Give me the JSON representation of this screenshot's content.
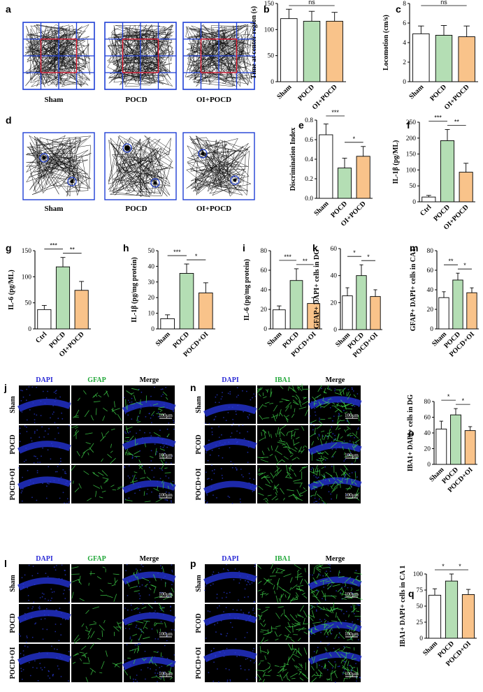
{
  "panels": {
    "a": {
      "letter": "a",
      "labels": [
        "Sham",
        "POCD",
        "OI+POCD"
      ]
    },
    "d": {
      "letter": "d",
      "labels": [
        "Sham",
        "POCD",
        "OI+POCD"
      ]
    },
    "j": {
      "letter": "j",
      "cols": [
        "DAPI",
        "GFAP",
        "Merge"
      ],
      "rows": [
        "Sham",
        "POCD",
        "POCD+OI"
      ],
      "scale": "100μm"
    },
    "n": {
      "letter": "n",
      "cols": [
        "DAPI",
        "IBA1",
        "Merge"
      ],
      "rows": [
        "Sham",
        "PCOD",
        "POCD+OI"
      ],
      "scale": "100μm"
    },
    "l": {
      "letter": "l",
      "cols": [
        "DAPI",
        "GFAP",
        "Merge"
      ],
      "rows": [
        "Sham",
        "POCD",
        "POCD+OI"
      ],
      "scale": "100μm"
    },
    "p": {
      "letter": "p",
      "cols": [
        "DAPI",
        "IBA1",
        "Merge"
      ],
      "rows": [
        "Sham",
        "PCOD",
        "POCD+OI"
      ],
      "scale": "100μm"
    }
  },
  "colors": {
    "white_bar": "#ffffff",
    "green_bar": "#b4deb4",
    "orange_bar": "#f9c38a",
    "dapi_title": "#2b2bd6",
    "marker_title": "#22a83a"
  },
  "chart_data": [
    {
      "id": "b",
      "letter": "b",
      "type": "bar",
      "categories": [
        "Sham",
        "POCD",
        "OI+POCD"
      ],
      "values": [
        121,
        116,
        116
      ],
      "errors": [
        18,
        19,
        17
      ],
      "ylabel": "Time at center region (s)",
      "ylim": [
        0,
        150
      ],
      "yticks": [
        0,
        50,
        100,
        150
      ],
      "sig": [
        {
          "from": 0,
          "to": 2,
          "text": "ns"
        }
      ]
    },
    {
      "id": "c",
      "letter": "c",
      "type": "bar",
      "categories": [
        "Sham",
        "POCD",
        "OI+POCD"
      ],
      "values": [
        4.9,
        4.75,
        4.6
      ],
      "errors": [
        0.8,
        1.0,
        1.1
      ],
      "ylabel": "Locomotion (cm/s)",
      "ylim": [
        0,
        8
      ],
      "yticks": [
        0,
        2,
        4,
        6,
        8
      ],
      "sig": [
        {
          "from": 0,
          "to": 2,
          "text": "ns"
        }
      ]
    },
    {
      "id": "e",
      "letter": "e",
      "type": "bar",
      "categories": [
        "Sham",
        "POCD",
        "OI+POCD"
      ],
      "values": [
        0.65,
        0.31,
        0.43
      ],
      "errors": [
        0.11,
        0.1,
        0.1
      ],
      "ylabel": "Discrimination Index",
      "ylim": [
        0,
        0.8
      ],
      "yticks": [
        0.0,
        0.2,
        0.4,
        0.6,
        0.8
      ],
      "sig": [
        {
          "from": 0,
          "to": 1,
          "text": "***"
        },
        {
          "from": 1,
          "to": 2,
          "text": "*"
        }
      ]
    },
    {
      "id": "f",
      "letter": "f",
      "type": "bar",
      "categories": [
        "Ctrl",
        "POCD",
        "OI+POCD"
      ],
      "values": [
        15,
        192,
        93
      ],
      "errors": [
        5,
        35,
        28
      ],
      "ylabel": "IL-1β (pg/ML)",
      "ylim": [
        0,
        250
      ],
      "yticks": [
        0,
        50,
        100,
        150,
        200,
        250
      ],
      "sig": [
        {
          "from": 0,
          "to": 1,
          "text": "***"
        },
        {
          "from": 1,
          "to": 2,
          "text": "**"
        }
      ]
    },
    {
      "id": "g",
      "letter": "g",
      "type": "bar",
      "categories": [
        "Ctrl",
        "POCD",
        "OI+POCD"
      ],
      "values": [
        37,
        119,
        74
      ],
      "errors": [
        8,
        18,
        17
      ],
      "ylabel": "IL-6 (pg/ML)",
      "ylim": [
        0,
        150
      ],
      "yticks": [
        0,
        50,
        100,
        150
      ],
      "sig": [
        {
          "from": 0,
          "to": 1,
          "text": "***"
        },
        {
          "from": 1,
          "to": 2,
          "text": "**"
        }
      ]
    },
    {
      "id": "h",
      "letter": "h",
      "type": "bar",
      "categories": [
        "Sham",
        "POCD",
        "POCD+OI"
      ],
      "values": [
        6.5,
        35.5,
        23
      ],
      "errors": [
        2.5,
        6,
        6.5
      ],
      "ylabel": "IL-1β (pg/mg protein)",
      "ylim": [
        0,
        50
      ],
      "yticks": [
        0,
        10,
        20,
        30,
        40,
        50
      ],
      "sig": [
        {
          "from": 0,
          "to": 1,
          "text": "***"
        },
        {
          "from": 1,
          "to": 2,
          "text": "*"
        }
      ]
    },
    {
      "id": "i",
      "letter": "i",
      "type": "bar",
      "categories": [
        "Sham",
        "POCD",
        "POCD+OI"
      ],
      "values": [
        19.5,
        49.5,
        26
      ],
      "errors": [
        4,
        12,
        6
      ],
      "ylabel": "IL-6 (pg/mg protein)",
      "ylim": [
        0,
        80
      ],
      "yticks": [
        0,
        20,
        40,
        60,
        80
      ],
      "sig": [
        {
          "from": 0,
          "to": 1,
          "text": "***"
        },
        {
          "from": 1,
          "to": 2,
          "text": "**"
        }
      ]
    },
    {
      "id": "k",
      "letter": "k",
      "type": "bar",
      "categories": [
        "Sham",
        "POCD",
        "POCD+OI"
      ],
      "values": [
        25,
        40,
        24.5
      ],
      "errors": [
        6,
        8,
        5
      ],
      "ylabel": "GFAP+ DAPI+ cells in DG",
      "ylim": [
        0,
        60
      ],
      "yticks": [
        0,
        20,
        40,
        60
      ],
      "sig": [
        {
          "from": 0,
          "to": 1,
          "text": "*"
        },
        {
          "from": 1,
          "to": 2,
          "text": "*"
        }
      ]
    },
    {
      "id": "m",
      "letter": "m",
      "type": "bar",
      "categories": [
        "Sham",
        "POCD",
        "POCD+OI"
      ],
      "values": [
        32,
        50,
        37
      ],
      "errors": [
        6,
        7,
        5
      ],
      "ylabel": "GFAP+ DAPI+ cells in CA1",
      "ylim": [
        0,
        80
      ],
      "yticks": [
        0,
        20,
        40,
        60,
        80
      ],
      "sig": [
        {
          "from": 0,
          "to": 1,
          "text": "**"
        },
        {
          "from": 1,
          "to": 2,
          "text": "*"
        }
      ]
    },
    {
      "id": "o",
      "letter": "o",
      "type": "bar",
      "categories": [
        "Sham",
        "POCD",
        "POCD+OI"
      ],
      "values": [
        45,
        63,
        43
      ],
      "errors": [
        10,
        8,
        5
      ],
      "ylabel": "IBA1+ DAPI+ cells in DG",
      "ylim": [
        0,
        80
      ],
      "yticks": [
        0,
        20,
        40,
        60,
        80
      ],
      "sig": [
        {
          "from": 0,
          "to": 1,
          "text": "*"
        },
        {
          "from": 1,
          "to": 2,
          "text": "*"
        }
      ]
    },
    {
      "id": "q",
      "letter": "q",
      "type": "bar",
      "categories": [
        "Sham",
        "POCD",
        "POCD+OI"
      ],
      "values": [
        67,
        89,
        68
      ],
      "errors": [
        10,
        11,
        8
      ],
      "ylabel": "IBA1+ DAPI+ cells in CA 1",
      "ylim": [
        0,
        100
      ],
      "yticks": [
        0,
        25,
        50,
        75,
        100
      ],
      "sig": [
        {
          "from": 0,
          "to": 1,
          "text": "*"
        },
        {
          "from": 1,
          "to": 2,
          "text": "*"
        }
      ]
    }
  ]
}
